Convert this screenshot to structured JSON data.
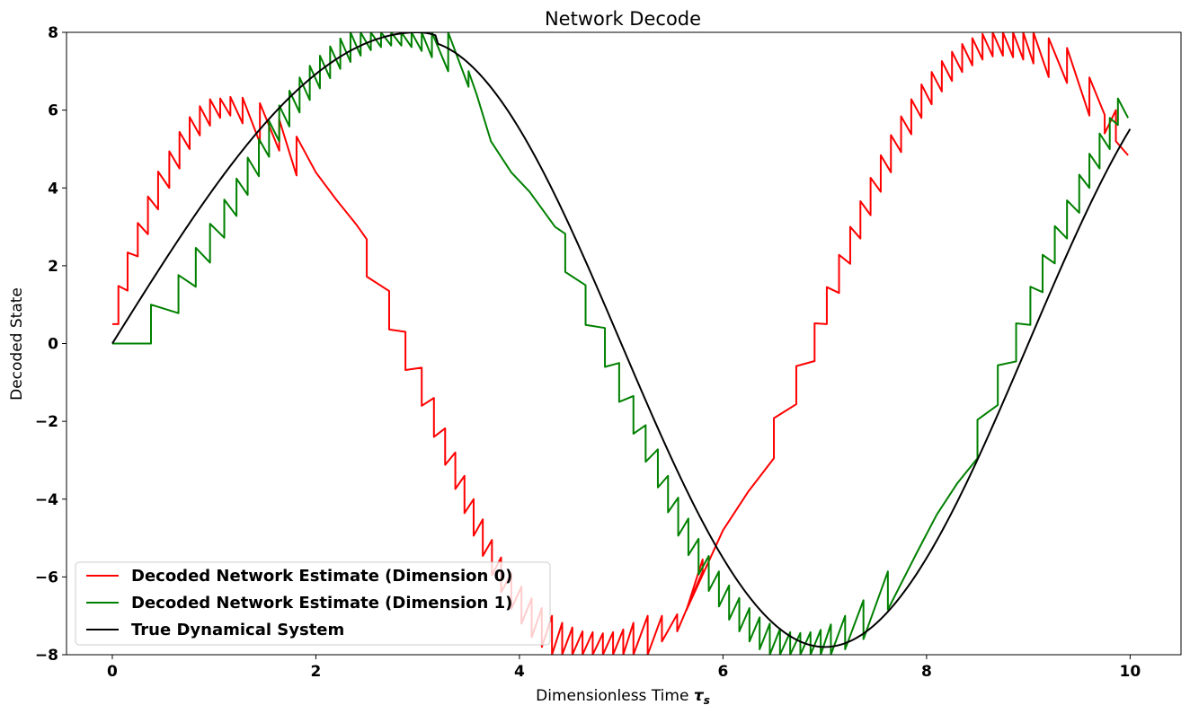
{
  "chart_data": {
    "type": "line",
    "title": "Network Decode",
    "xlabel": "Dimensionless Time",
    "xlabel_symbol": "τ",
    "xlabel_subscript": "s",
    "ylabel": "Decoded State",
    "xlim": [
      -0.45,
      10.5
    ],
    "ylim": [
      -8,
      8
    ],
    "xticks": [
      0,
      2,
      4,
      6,
      8,
      10
    ],
    "yticks": [
      -8,
      -6,
      -4,
      -2,
      0,
      2,
      4,
      6,
      8
    ],
    "xtick_labels": [
      "0",
      "2",
      "4",
      "6",
      "8",
      "10"
    ],
    "ytick_labels": [
      "−8",
      "−6",
      "−4",
      "−2",
      "0",
      "2",
      "4",
      "6",
      "8"
    ],
    "grid": false,
    "legend_position": "lower-left",
    "series": [
      {
        "name": "Decoded Network Estimate (Dimension 0)",
        "color": "#ff0000",
        "points": [
          [
            0.0,
            0.5
          ],
          [
            0.06,
            0.5
          ],
          [
            0.06,
            1.48
          ],
          [
            0.15,
            1.36
          ],
          [
            0.15,
            2.34
          ],
          [
            0.25,
            2.24
          ],
          [
            0.25,
            3.1
          ],
          [
            0.35,
            2.81
          ],
          [
            0.35,
            3.78
          ],
          [
            0.45,
            3.45
          ],
          [
            0.45,
            4.42
          ],
          [
            0.56,
            4.0
          ],
          [
            0.56,
            4.94
          ],
          [
            0.66,
            4.5
          ],
          [
            0.66,
            5.44
          ],
          [
            0.76,
            5.0
          ],
          [
            0.76,
            5.82
          ],
          [
            0.86,
            5.35
          ],
          [
            0.86,
            6.1
          ],
          [
            0.96,
            5.6
          ],
          [
            0.96,
            6.28
          ],
          [
            1.06,
            5.8
          ],
          [
            1.06,
            6.3
          ],
          [
            1.16,
            5.86
          ],
          [
            1.16,
            6.34
          ],
          [
            1.28,
            5.66
          ],
          [
            1.28,
            6.32
          ],
          [
            1.45,
            5.16
          ],
          [
            1.45,
            6.18
          ],
          [
            1.64,
            4.96
          ],
          [
            1.64,
            5.76
          ],
          [
            1.81,
            4.32
          ],
          [
            1.81,
            5.32
          ],
          [
            2.0,
            4.4
          ],
          [
            2.2,
            3.7
          ],
          [
            2.4,
            3.05
          ],
          [
            2.5,
            2.68
          ],
          [
            2.5,
            1.72
          ],
          [
            2.72,
            1.35
          ],
          [
            2.72,
            0.36
          ],
          [
            2.88,
            0.3
          ],
          [
            2.88,
            -0.68
          ],
          [
            3.04,
            -0.62
          ],
          [
            3.04,
            -1.6
          ],
          [
            3.16,
            -1.4
          ],
          [
            3.16,
            -2.4
          ],
          [
            3.27,
            -2.18
          ],
          [
            3.27,
            -3.12
          ],
          [
            3.37,
            -2.8
          ],
          [
            3.37,
            -3.74
          ],
          [
            3.46,
            -3.4
          ],
          [
            3.46,
            -4.36
          ],
          [
            3.55,
            -4.0
          ],
          [
            3.55,
            -4.94
          ],
          [
            3.64,
            -4.52
          ],
          [
            3.64,
            -5.46
          ],
          [
            3.73,
            -5.05
          ],
          [
            3.73,
            -5.96
          ],
          [
            3.82,
            -5.5
          ],
          [
            3.82,
            -6.4
          ],
          [
            3.92,
            -5.9
          ],
          [
            3.92,
            -6.82
          ],
          [
            4.02,
            -6.25
          ],
          [
            4.02,
            -7.2
          ],
          [
            4.12,
            -6.55
          ],
          [
            4.12,
            -7.55
          ],
          [
            4.22,
            -6.8
          ],
          [
            4.22,
            -7.8
          ],
          [
            4.32,
            -7.0
          ],
          [
            4.32,
            -8.0
          ],
          [
            4.42,
            -7.18
          ],
          [
            4.42,
            -8.0
          ],
          [
            4.52,
            -7.3
          ],
          [
            4.52,
            -8.0
          ],
          [
            4.62,
            -7.4
          ],
          [
            4.62,
            -8.0
          ],
          [
            4.72,
            -7.42
          ],
          [
            4.72,
            -8.0
          ],
          [
            4.82,
            -7.45
          ],
          [
            4.82,
            -8.0
          ],
          [
            4.92,
            -7.42
          ],
          [
            4.92,
            -8.0
          ],
          [
            5.02,
            -7.35
          ],
          [
            5.02,
            -8.0
          ],
          [
            5.12,
            -7.18
          ],
          [
            5.12,
            -8.0
          ],
          [
            5.26,
            -7.0
          ],
          [
            5.26,
            -8.0
          ],
          [
            5.4,
            -7.0
          ],
          [
            5.4,
            -7.66
          ],
          [
            5.55,
            -6.96
          ],
          [
            5.55,
            -7.4
          ],
          [
            5.8,
            -5.86
          ],
          [
            5.8,
            -5.55
          ],
          [
            5.64,
            -6.86
          ],
          [
            6.0,
            -4.8
          ],
          [
            6.25,
            -3.8
          ],
          [
            6.5,
            -2.95
          ],
          [
            6.5,
            -1.92
          ],
          [
            6.72,
            -1.56
          ],
          [
            6.72,
            -0.58
          ],
          [
            6.9,
            -0.45
          ],
          [
            6.9,
            0.52
          ],
          [
            7.02,
            0.5
          ],
          [
            7.02,
            1.45
          ],
          [
            7.14,
            1.3
          ],
          [
            7.14,
            2.28
          ],
          [
            7.25,
            2.05
          ],
          [
            7.25,
            3.0
          ],
          [
            7.35,
            2.7
          ],
          [
            7.35,
            3.66
          ],
          [
            7.45,
            3.3
          ],
          [
            7.45,
            4.26
          ],
          [
            7.55,
            3.9
          ],
          [
            7.55,
            4.84
          ],
          [
            7.65,
            4.4
          ],
          [
            7.65,
            5.36
          ],
          [
            7.75,
            4.92
          ],
          [
            7.75,
            5.84
          ],
          [
            7.85,
            5.38
          ],
          [
            7.85,
            6.28
          ],
          [
            7.95,
            5.8
          ],
          [
            7.95,
            6.66
          ],
          [
            8.05,
            6.15
          ],
          [
            8.05,
            6.98
          ],
          [
            8.15,
            6.48
          ],
          [
            8.15,
            7.26
          ],
          [
            8.25,
            6.75
          ],
          [
            8.25,
            7.5
          ],
          [
            8.35,
            6.98
          ],
          [
            8.35,
            7.7
          ],
          [
            8.45,
            7.15
          ],
          [
            8.45,
            7.85
          ],
          [
            8.55,
            7.3
          ],
          [
            8.55,
            7.96
          ],
          [
            8.65,
            7.38
          ],
          [
            8.65,
            8.0
          ],
          [
            8.75,
            7.4
          ],
          [
            8.75,
            8.0
          ],
          [
            8.85,
            7.36
          ],
          [
            8.85,
            8.0
          ],
          [
            8.95,
            7.3
          ],
          [
            8.95,
            8.0
          ],
          [
            9.05,
            7.2
          ],
          [
            9.05,
            8.0
          ],
          [
            9.2,
            6.85
          ],
          [
            9.2,
            7.85
          ],
          [
            9.38,
            6.7
          ],
          [
            9.38,
            7.6
          ],
          [
            9.6,
            5.86
          ],
          [
            9.6,
            6.84
          ],
          [
            9.75,
            5.88
          ],
          [
            9.75,
            5.4
          ],
          [
            9.86,
            6.0
          ],
          [
            9.86,
            5.2
          ],
          [
            9.98,
            4.84
          ]
        ]
      },
      {
        "name": "Decoded Network Estimate (Dimension 1)",
        "color": "#008000",
        "points": [
          [
            0.0,
            0.0
          ],
          [
            0.38,
            0.0
          ],
          [
            0.38,
            1.0
          ],
          [
            0.65,
            0.78
          ],
          [
            0.65,
            1.76
          ],
          [
            0.82,
            1.46
          ],
          [
            0.82,
            2.46
          ],
          [
            0.96,
            2.08
          ],
          [
            0.96,
            3.08
          ],
          [
            1.1,
            2.72
          ],
          [
            1.1,
            3.7
          ],
          [
            1.22,
            3.28
          ],
          [
            1.22,
            4.24
          ],
          [
            1.33,
            3.82
          ],
          [
            1.33,
            4.78
          ],
          [
            1.44,
            4.3
          ],
          [
            1.44,
            5.26
          ],
          [
            1.54,
            4.8
          ],
          [
            1.54,
            5.72
          ],
          [
            1.64,
            5.2
          ],
          [
            1.64,
            6.12
          ],
          [
            1.74,
            5.58
          ],
          [
            1.74,
            6.5
          ],
          [
            1.84,
            5.94
          ],
          [
            1.84,
            6.84
          ],
          [
            1.94,
            6.26
          ],
          [
            1.94,
            7.14
          ],
          [
            2.04,
            6.56
          ],
          [
            2.04,
            7.4
          ],
          [
            2.14,
            6.82
          ],
          [
            2.14,
            7.64
          ],
          [
            2.24,
            7.06
          ],
          [
            2.24,
            7.84
          ],
          [
            2.34,
            7.24
          ],
          [
            2.34,
            8.0
          ],
          [
            2.44,
            7.4
          ],
          [
            2.44,
            8.0
          ],
          [
            2.54,
            7.54
          ],
          [
            2.54,
            8.0
          ],
          [
            2.64,
            7.62
          ],
          [
            2.64,
            8.0
          ],
          [
            2.74,
            7.66
          ],
          [
            2.74,
            8.0
          ],
          [
            2.84,
            7.66
          ],
          [
            2.84,
            8.0
          ],
          [
            2.94,
            7.62
          ],
          [
            2.94,
            8.0
          ],
          [
            3.04,
            7.52
          ],
          [
            3.04,
            8.0
          ],
          [
            3.14,
            7.36
          ],
          [
            3.14,
            8.0
          ],
          [
            3.3,
            7.0
          ],
          [
            3.3,
            8.0
          ],
          [
            3.5,
            6.6
          ],
          [
            3.5,
            7.0
          ],
          [
            3.58,
            6.4
          ],
          [
            3.72,
            5.2
          ],
          [
            3.92,
            4.4
          ],
          [
            4.1,
            3.9
          ],
          [
            4.35,
            3.0
          ],
          [
            4.45,
            2.82
          ],
          [
            4.45,
            1.84
          ],
          [
            4.65,
            1.5
          ],
          [
            4.65,
            0.48
          ],
          [
            4.84,
            0.4
          ],
          [
            4.84,
            -0.6
          ],
          [
            4.98,
            -0.5
          ],
          [
            4.98,
            -1.5
          ],
          [
            5.12,
            -1.35
          ],
          [
            5.12,
            -2.32
          ],
          [
            5.24,
            -2.1
          ],
          [
            5.24,
            -3.04
          ],
          [
            5.36,
            -2.72
          ],
          [
            5.36,
            -3.7
          ],
          [
            5.46,
            -3.4
          ],
          [
            5.46,
            -4.34
          ],
          [
            5.56,
            -3.96
          ],
          [
            5.56,
            -4.94
          ],
          [
            5.66,
            -4.5
          ],
          [
            5.66,
            -5.44
          ],
          [
            5.76,
            -5.02
          ],
          [
            5.76,
            -5.94
          ],
          [
            5.86,
            -5.46
          ],
          [
            5.86,
            -6.36
          ],
          [
            5.96,
            -5.86
          ],
          [
            5.96,
            -6.76
          ],
          [
            6.06,
            -6.22
          ],
          [
            6.06,
            -7.1
          ],
          [
            6.16,
            -6.54
          ],
          [
            6.16,
            -7.4
          ],
          [
            6.26,
            -6.8
          ],
          [
            6.26,
            -7.66
          ],
          [
            6.36,
            -7.04
          ],
          [
            6.36,
            -7.86
          ],
          [
            6.46,
            -7.2
          ],
          [
            6.46,
            -8.0
          ],
          [
            6.56,
            -7.34
          ],
          [
            6.56,
            -8.0
          ],
          [
            6.66,
            -7.42
          ],
          [
            6.66,
            -8.0
          ],
          [
            6.76,
            -7.44
          ],
          [
            6.76,
            -8.0
          ],
          [
            6.86,
            -7.42
          ],
          [
            6.86,
            -8.0
          ],
          [
            6.96,
            -7.36
          ],
          [
            6.96,
            -8.0
          ],
          [
            7.06,
            -7.22
          ],
          [
            7.06,
            -8.0
          ],
          [
            7.2,
            -7.0
          ],
          [
            7.2,
            -7.86
          ],
          [
            7.38,
            -6.6
          ],
          [
            7.38,
            -7.6
          ],
          [
            7.62,
            -5.86
          ],
          [
            7.62,
            -6.84
          ],
          [
            7.9,
            -5.4
          ],
          [
            8.1,
            -4.4
          ],
          [
            8.3,
            -3.6
          ],
          [
            8.5,
            -2.95
          ],
          [
            8.5,
            -1.96
          ],
          [
            8.7,
            -1.58
          ],
          [
            8.7,
            -0.56
          ],
          [
            8.88,
            -0.46
          ],
          [
            8.88,
            0.52
          ],
          [
            9.02,
            0.48
          ],
          [
            9.02,
            1.46
          ],
          [
            9.14,
            1.32
          ],
          [
            9.14,
            2.28
          ],
          [
            9.26,
            2.06
          ],
          [
            9.26,
            3.02
          ],
          [
            9.38,
            2.7
          ],
          [
            9.38,
            3.68
          ],
          [
            9.5,
            3.36
          ],
          [
            9.5,
            4.34
          ],
          [
            9.6,
            4.0
          ],
          [
            9.6,
            4.88
          ],
          [
            9.7,
            4.5
          ],
          [
            9.7,
            5.4
          ],
          [
            9.8,
            5.0
          ],
          [
            9.8,
            5.8
          ],
          [
            9.88,
            5.62
          ],
          [
            9.88,
            6.3
          ],
          [
            9.98,
            5.8
          ]
        ]
      },
      {
        "name": "True Dynamical System",
        "color": "#000000",
        "function": "true_system"
      }
    ]
  }
}
